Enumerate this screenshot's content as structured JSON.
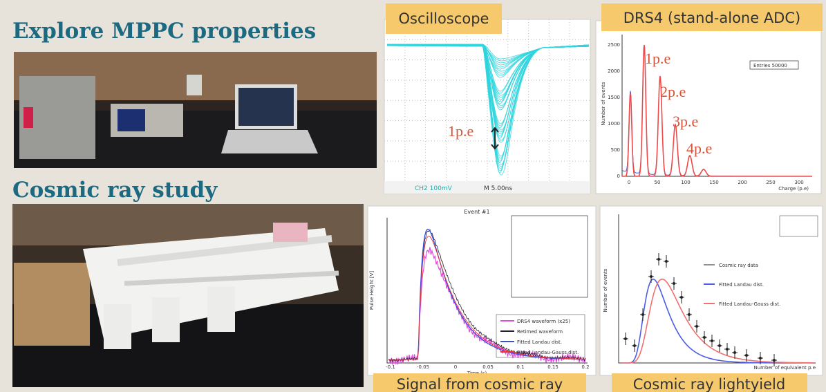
{
  "headings": [
    "Explore MPPC properties",
    "Cosmic ray study"
  ],
  "oscilloscope": {
    "label": "Oscilloscope",
    "annotation": "1p.e",
    "status": [
      "CH2  100mV",
      "M 5.00ns"
    ]
  },
  "drs4": {
    "label": "DRS4 (stand-alone ADC)",
    "annotations": [
      "1p.e",
      "2p.e",
      "3p.e",
      "4p.e"
    ],
    "stats": "Entries    50000",
    "y_axis": "Number of events",
    "x_axis": "Charge (p.e)",
    "xticks": [
      "0",
      "50",
      "100",
      "150",
      "200",
      "250",
      "300"
    ],
    "yticks": [
      "0",
      "500",
      "1000",
      "1500",
      "2000",
      "2500"
    ]
  },
  "signal": {
    "label": "Signal from cosmic ray",
    "title": "Event #1",
    "y_axis": "Pulse Height [V]",
    "x_axis": "Time (s)",
    "xticks": [
      "-0.1",
      "-0.05",
      "0",
      "0.05",
      "0.1",
      "0.15",
      "0.2"
    ],
    "legend": [
      "DRS4 waveform (x25)",
      "Retimed waveform",
      "Fitted Landau dist.",
      "Fitted Landau-Gauss dist."
    ]
  },
  "lightyield": {
    "label": "Cosmic ray lightyield",
    "y_axis": "Number of events",
    "x_axis": "Number of equivalent p.e",
    "legend": [
      "Cosmic ray data",
      "Fitted Landau dist.",
      "Fitted Landau-Gauss dist."
    ]
  }
}
